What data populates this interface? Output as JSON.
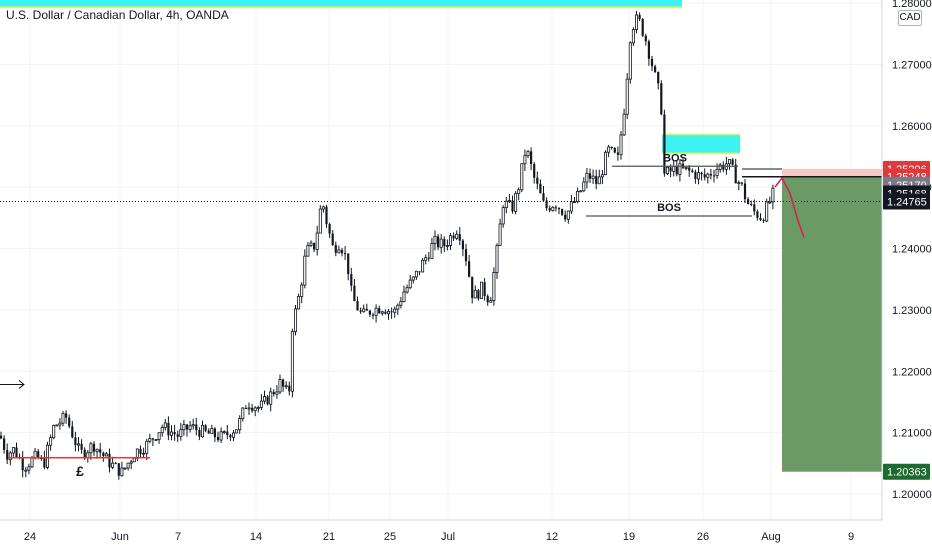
{
  "header": {
    "title": "U.S. Dollar / Canadian Dollar, 4h, OANDA",
    "currency_badge": "CAD"
  },
  "colors": {
    "up": "#131722",
    "down": "#131722",
    "supply_zone": "#3ff2f2",
    "supply_zone_border": "#e7f55a",
    "target_zone": "#6b9a64",
    "entry_zone": "#f7c7c4",
    "projection": "#e0194e",
    "support_line": "#e0393b",
    "bos_line": "#555555",
    "current_price_bg": "#131722",
    "ask_bg": "#e0393b",
    "grey_bg": "#787b86",
    "target_bg": "#1e6b2f"
  },
  "chart_data": {
    "type": "candlestick",
    "symbol": "USDCAD",
    "timeframe": "4h",
    "source": "OANDA",
    "y_ticks": [
      "1.28000",
      "1.27000",
      "1.26000",
      "1.25000",
      "1.24000",
      "1.23000",
      "1.22000",
      "1.21000",
      "1.20000"
    ],
    "x_ticks": [
      "24",
      "Jun",
      "7",
      "14",
      "21",
      "25",
      "Jul",
      "12",
      "19",
      "26",
      "Aug",
      "9"
    ],
    "ylim": [
      1.1993,
      1.2807
    ],
    "waypoints": [
      {
        "t": 0,
        "p": 1.2095
      },
      {
        "t": 7,
        "p": 1.2065
      },
      {
        "t": 14,
        "p": 1.2073
      },
      {
        "t": 24,
        "p": 1.2045
      },
      {
        "t": 36,
        "p": 1.206
      },
      {
        "t": 44,
        "p": 1.205
      },
      {
        "t": 54,
        "p": 1.211
      },
      {
        "t": 66,
        "p": 1.2125
      },
      {
        "t": 80,
        "p": 1.2065
      },
      {
        "t": 94,
        "p": 1.208
      },
      {
        "t": 110,
        "p": 1.205
      },
      {
        "t": 122,
        "p": 1.2035
      },
      {
        "t": 135,
        "p": 1.2068
      },
      {
        "t": 148,
        "p": 1.2082
      },
      {
        "t": 162,
        "p": 1.211
      },
      {
        "t": 178,
        "p": 1.2095
      },
      {
        "t": 190,
        "p": 1.211
      },
      {
        "t": 204,
        "p": 1.21
      },
      {
        "t": 222,
        "p": 1.2092
      },
      {
        "t": 238,
        "p": 1.211
      },
      {
        "t": 247,
        "p": 1.215
      },
      {
        "t": 260,
        "p": 1.214
      },
      {
        "t": 270,
        "p": 1.216
      },
      {
        "t": 280,
        "p": 1.218
      },
      {
        "t": 289,
        "p": 1.216
      },
      {
        "t": 292,
        "p": 1.227
      },
      {
        "t": 300,
        "p": 1.233
      },
      {
        "t": 306,
        "p": 1.2395
      },
      {
        "t": 315,
        "p": 1.2405
      },
      {
        "t": 322,
        "p": 1.248
      },
      {
        "t": 327,
        "p": 1.244
      },
      {
        "t": 333,
        "p": 1.24
      },
      {
        "t": 340,
        "p": 1.241
      },
      {
        "t": 347,
        "p": 1.238
      },
      {
        "t": 352,
        "p": 1.232
      },
      {
        "t": 362,
        "p": 1.229
      },
      {
        "t": 372,
        "p": 1.23
      },
      {
        "t": 382,
        "p": 1.2305
      },
      {
        "t": 394,
        "p": 1.2295
      },
      {
        "t": 404,
        "p": 1.233
      },
      {
        "t": 414,
        "p": 1.235
      },
      {
        "t": 424,
        "p": 1.238
      },
      {
        "t": 434,
        "p": 1.241
      },
      {
        "t": 444,
        "p": 1.2405
      },
      {
        "t": 458,
        "p": 1.2435
      },
      {
        "t": 466,
        "p": 1.2385
      },
      {
        "t": 473,
        "p": 1.232
      },
      {
        "t": 482,
        "p": 1.2335
      },
      {
        "t": 490,
        "p": 1.2315
      },
      {
        "t": 497,
        "p": 1.2395
      },
      {
        "t": 503,
        "p": 1.2475
      },
      {
        "t": 512,
        "p": 1.2465
      },
      {
        "t": 518,
        "p": 1.2495
      },
      {
        "t": 526,
        "p": 1.2565
      },
      {
        "t": 534,
        "p": 1.2515
      },
      {
        "t": 545,
        "p": 1.2465
      },
      {
        "t": 555,
        "p": 1.2475
      },
      {
        "t": 566,
        "p": 1.2455
      },
      {
        "t": 578,
        "p": 1.2485
      },
      {
        "t": 588,
        "p": 1.252
      },
      {
        "t": 598,
        "p": 1.2505
      },
      {
        "t": 608,
        "p": 1.256
      },
      {
        "t": 618,
        "p": 1.2545
      },
      {
        "t": 625,
        "p": 1.264
      },
      {
        "t": 631,
        "p": 1.276
      },
      {
        "t": 638,
        "p": 1.2775
      },
      {
        "t": 645,
        "p": 1.2745
      },
      {
        "t": 652,
        "p": 1.27
      },
      {
        "t": 661,
        "p": 1.264
      },
      {
        "t": 664,
        "p": 1.252
      },
      {
        "t": 676,
        "p": 1.253
      },
      {
        "t": 690,
        "p": 1.2525
      },
      {
        "t": 704,
        "p": 1.2515
      },
      {
        "t": 716,
        "p": 1.253
      },
      {
        "t": 728,
        "p": 1.254
      },
      {
        "t": 738,
        "p": 1.251
      },
      {
        "t": 742,
        "p": 1.25
      },
      {
        "t": 747,
        "p": 1.2475
      },
      {
        "t": 754,
        "p": 1.246
      },
      {
        "t": 762,
        "p": 1.245
      },
      {
        "t": 768,
        "p": 1.247
      },
      {
        "t": 775,
        "p": 1.2495
      }
    ],
    "supply_zones": [
      {
        "t0": 0,
        "t1": 682,
        "p_low": 1.2793,
        "p_high": 1.281
      },
      {
        "t0": 662,
        "t1": 740,
        "p_low": 1.2555,
        "p_high": 1.2586
      }
    ],
    "short_position": {
      "t0": 782,
      "t1": 882,
      "stop": 1.25296,
      "entry": 1.2517,
      "target": 1.20363
    },
    "projection": [
      {
        "t": 775,
        "p": 1.25
      },
      {
        "t": 782,
        "p": 1.2515
      },
      {
        "t": 790,
        "p": 1.249
      },
      {
        "t": 798,
        "p": 1.2445
      },
      {
        "t": 804,
        "p": 1.2418
      }
    ],
    "bos_lines": [
      {
        "t0": 612,
        "t1": 738,
        "p": 1.2534,
        "label": "BOS"
      },
      {
        "t0": 586,
        "t1": 752,
        "p": 1.2453,
        "label": "BOS"
      }
    ],
    "support_line": {
      "t0": 8,
      "t1": 150,
      "p": 1.2059,
      "label": "£"
    },
    "arrow": {
      "t0": 0,
      "t1": 24,
      "p": 1.21785
    },
    "current_price_line": 1.24765,
    "price_tags": [
      {
        "value": "1.25296",
        "p": 1.25296,
        "bg_key": "ask_bg"
      },
      {
        "value": "1.25248",
        "p": 1.2517,
        "bg_key": "ask_bg"
      },
      {
        "value": "1.25170",
        "p": 1.25036,
        "bg_key": "grey_bg"
      },
      {
        "value": "1.25168",
        "p": 1.24896,
        "bg_key": "current_price_bg"
      },
      {
        "value": "1.24765",
        "p": 1.24765,
        "bg_key": "current_price_bg"
      },
      {
        "value": "1.20363",
        "p": 1.20363,
        "bg_key": "target_bg"
      }
    ]
  }
}
